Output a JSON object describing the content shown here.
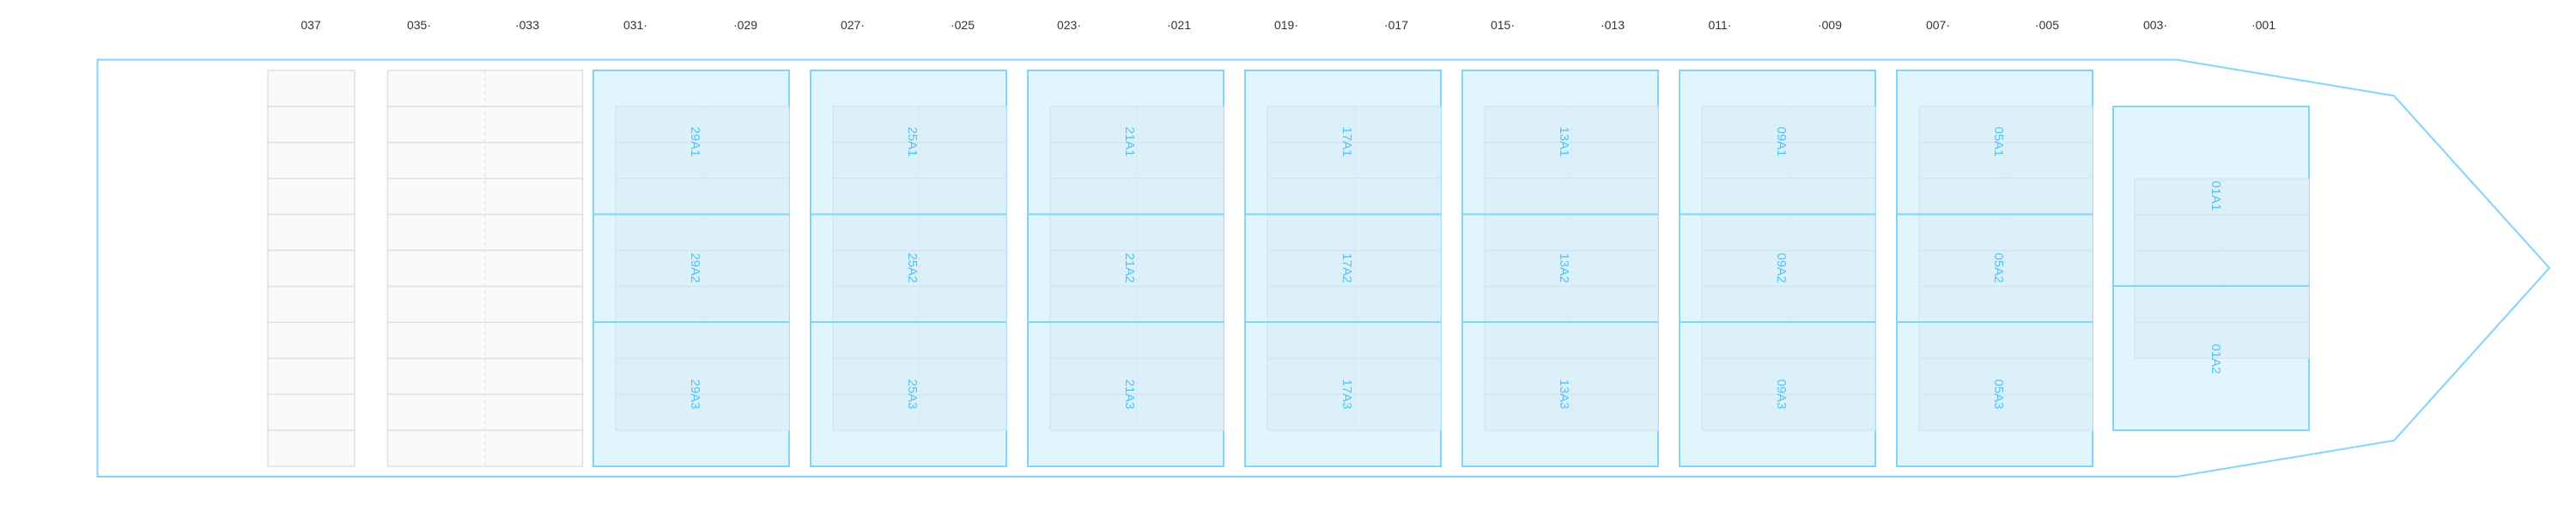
{
  "colors": {
    "hull": "#81d4fa",
    "bay_fill": "#e1f5fe",
    "bay_stroke": "#81d4fa",
    "grid_fill": "#dcf0f9",
    "grid_stroke": "#d2e4ee",
    "label": "#4fc3f7",
    "empty_fill": "#fafafa",
    "empty_stroke": "#e0e0e0",
    "tick_text": "#333333"
  },
  "bay_ticks": [
    "037",
    "035·",
    "·033",
    "031·",
    "·029",
    "027·",
    "·025",
    "023·",
    "·021",
    "019·",
    "·017",
    "015·",
    "·013",
    "011·",
    "·009",
    "007·",
    "·005",
    "003·",
    "·001"
  ],
  "empty_bays": [
    {
      "name": "037",
      "columns": 1,
      "rows": 11
    },
    {
      "name": "035-033",
      "columns": 2,
      "rows": 11
    }
  ],
  "bays": [
    {
      "bay": "29",
      "slots": [
        "29A1",
        "29A2",
        "29A3"
      ]
    },
    {
      "bay": "25",
      "slots": [
        "25A1",
        "25A2",
        "25A3"
      ]
    },
    {
      "bay": "21",
      "slots": [
        "21A1",
        "21A2",
        "21A3"
      ]
    },
    {
      "bay": "17",
      "slots": [
        "17A1",
        "17A2",
        "17A3"
      ]
    },
    {
      "bay": "13",
      "slots": [
        "13A1",
        "13A2",
        "13A3"
      ]
    },
    {
      "bay": "09",
      "slots": [
        "09A1",
        "09A2",
        "09A3"
      ]
    },
    {
      "bay": "05",
      "slots": [
        "05A1",
        "05A2",
        "05A3"
      ]
    }
  ],
  "bow_bay": {
    "bay": "01",
    "slots": [
      "01A1",
      "01A2"
    ]
  }
}
